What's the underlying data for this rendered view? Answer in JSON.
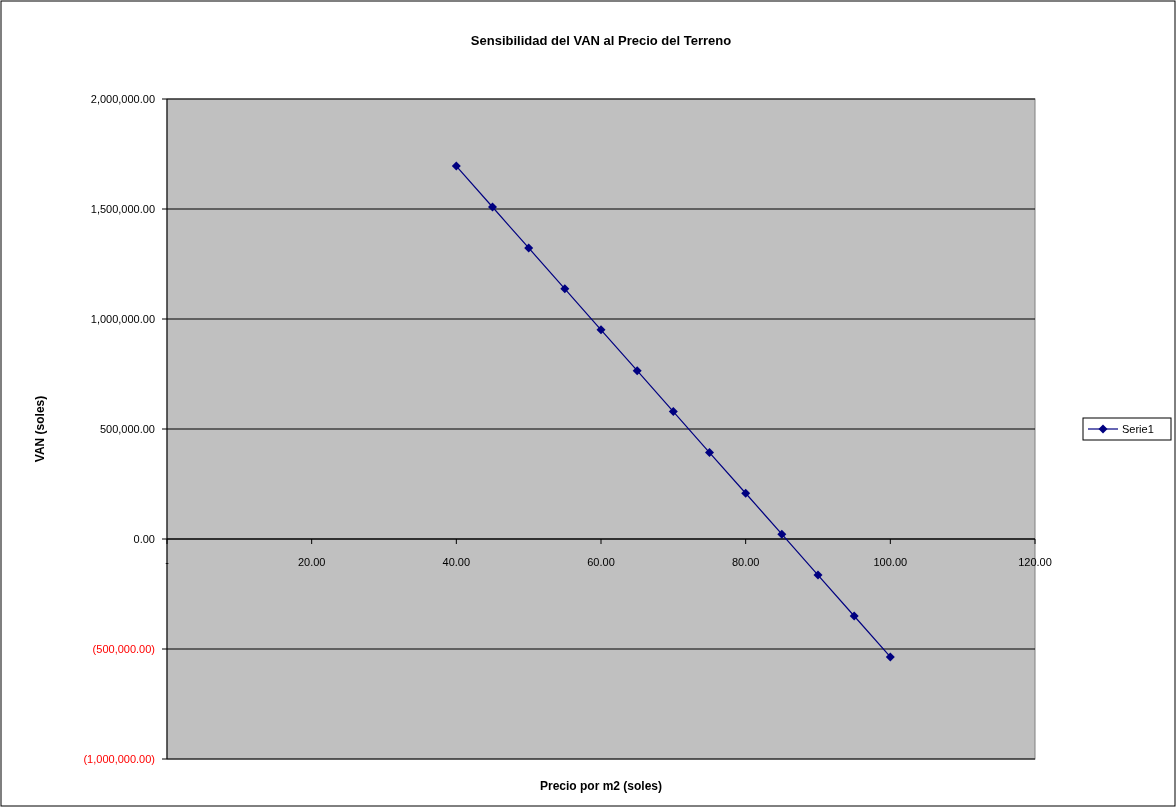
{
  "chart_data": {
    "type": "line",
    "title": "Sensibilidad del VAN al Precio del Terreno",
    "xlabel": "Precio por m2 (soles)",
    "ylabel": "VAN (soles)",
    "x": [
      40,
      45,
      50,
      55,
      60,
      65,
      70,
      75,
      80,
      85,
      90,
      95,
      100
    ],
    "series": [
      {
        "name": "Serie1",
        "color": "#000080",
        "values": [
          1695000,
          1509000,
          1323000,
          1137000,
          951000,
          765000,
          579000,
          393000,
          208000,
          22000,
          -164000,
          -350000,
          -536000
        ]
      }
    ],
    "xlim": [
      0,
      120
    ],
    "xticks": [
      {
        "value": 0,
        "label": "-"
      },
      {
        "value": 20,
        "label": "20.00"
      },
      {
        "value": 40,
        "label": "40.00"
      },
      {
        "value": 60,
        "label": "60.00"
      },
      {
        "value": 80,
        "label": "80.00"
      },
      {
        "value": 100,
        "label": "100.00"
      },
      {
        "value": 120,
        "label": "120.00"
      }
    ],
    "ylim": [
      -1000000,
      2000000
    ],
    "yticks": [
      {
        "value": -1000000,
        "label": "(1,000,000.00)"
      },
      {
        "value": -500000,
        "label": "(500,000.00)"
      },
      {
        "value": 0,
        "label": "0.00"
      },
      {
        "value": 500000,
        "label": "500,000.00"
      },
      {
        "value": 1000000,
        "label": "1,000,000.00"
      },
      {
        "value": 1500000,
        "label": "1,500,000.00"
      },
      {
        "value": 2000000,
        "label": "2,000,000.00"
      }
    ],
    "grid": "y",
    "legend": "right",
    "marker": "diamond",
    "line_style": "solid"
  }
}
